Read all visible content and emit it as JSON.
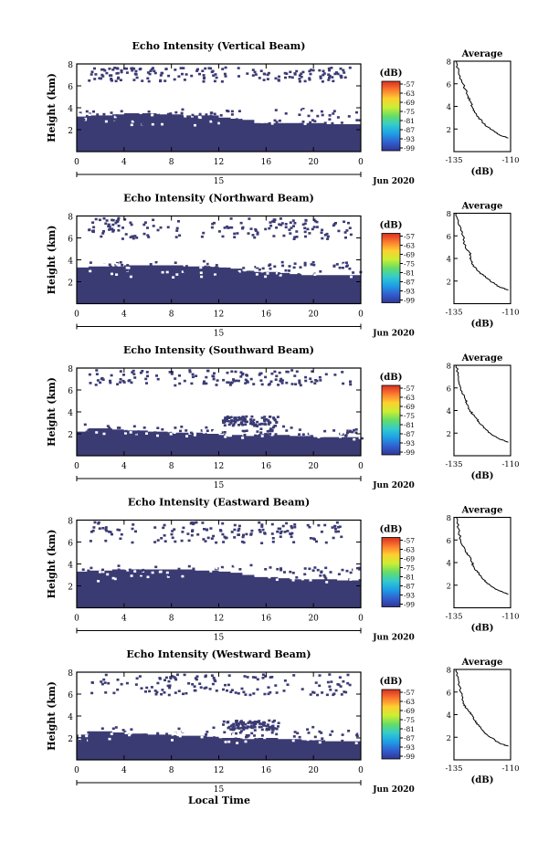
{
  "figure": {
    "xlabel": "Local Time",
    "colors": {
      "echo": "#3b3b74",
      "axis": "#000000",
      "background": "#ffffff"
    }
  },
  "colorbar": {
    "unit": "(dB)",
    "tick_labels": [
      "-57",
      "-63",
      "-69",
      "-75",
      "-81",
      "-87",
      "-93",
      "-99"
    ],
    "stops": [
      "#313695",
      "#3160d0",
      "#1ea0e6",
      "#33cccc",
      "#66dd66",
      "#ccee33",
      "#fdd030",
      "#fd7a30",
      "#d7301f"
    ]
  },
  "chart_data": [
    {
      "type": "heatmap",
      "title": "Echo Intensity (Vertical Beam)",
      "ylabel": "Height (km)",
      "xlim": [
        0,
        24
      ],
      "ylim": [
        0,
        8
      ],
      "x_ticks": [
        "0",
        "4",
        "8",
        "12",
        "16",
        "20",
        "0"
      ],
      "y_ticks": [
        "2",
        "4",
        "6",
        "8"
      ],
      "date_label": "15",
      "month_label": "Jun 2020",
      "solid_layer_top_km": [
        3.2,
        3.3,
        3.3,
        3.4,
        3.5,
        3.5,
        3.5,
        3.4,
        3.4,
        3.3,
        3.3,
        3.3,
        3.1,
        3.0,
        2.9,
        2.6,
        2.6,
        2.6,
        2.6,
        2.6,
        2.6,
        2.5,
        2.5,
        2.5,
        2.5
      ],
      "upper_echo_km": [
        6.5,
        7.8
      ],
      "profile": {
        "title": "Average",
        "xlabel": "(dB)",
        "xlim": [
          -135,
          -110
        ],
        "x_ticks": [
          "-135",
          "-110"
        ],
        "y_ticks": [
          "2",
          "4",
          "6",
          "8"
        ],
        "height_km": [
          8,
          7,
          6,
          5,
          4.5,
          4,
          3.5,
          3,
          2.5,
          2,
          1.5,
          1.2
        ],
        "value_db": [
          -134,
          -133,
          -131,
          -129,
          -128,
          -127,
          -126,
          -124,
          -122,
          -119,
          -115,
          -111
        ]
      }
    },
    {
      "type": "heatmap",
      "title": "Echo Intensity (Northward Beam)",
      "ylabel": "Height (km)",
      "xlim": [
        0,
        24
      ],
      "ylim": [
        0,
        8
      ],
      "x_ticks": [
        "0",
        "4",
        "8",
        "12",
        "16",
        "20",
        "0"
      ],
      "y_ticks": [
        "2",
        "4",
        "6",
        "8"
      ],
      "date_label": "15",
      "month_label": "Jun 2020",
      "solid_layer_top_km": [
        3.3,
        3.4,
        3.4,
        3.4,
        3.5,
        3.5,
        3.5,
        3.5,
        3.5,
        3.4,
        3.4,
        3.4,
        3.3,
        3.2,
        3.0,
        2.9,
        2.9,
        2.8,
        2.7,
        2.6,
        2.6,
        2.6,
        2.6,
        2.6,
        2.5
      ],
      "upper_echo_km": [
        6.0,
        8.0
      ],
      "profile": {
        "title": "Average",
        "xlabel": "(dB)",
        "xlim": [
          -135,
          -110
        ],
        "x_ticks": [
          "-135",
          "-110"
        ],
        "y_ticks": [
          "2",
          "4",
          "6",
          "8"
        ],
        "height_km": [
          8,
          7,
          6,
          5,
          4.5,
          4,
          3.5,
          3,
          2.5,
          2,
          1.5,
          1.2
        ],
        "value_db": [
          -134,
          -133,
          -131,
          -130,
          -128,
          -128,
          -127,
          -125,
          -122,
          -119,
          -115,
          -111
        ]
      }
    },
    {
      "type": "heatmap",
      "title": "Echo Intensity (Southward Beam)",
      "ylabel": "Height (km)",
      "xlim": [
        0,
        24
      ],
      "ylim": [
        0,
        8
      ],
      "x_ticks": [
        "0",
        "4",
        "8",
        "12",
        "16",
        "20",
        "0"
      ],
      "y_ticks": [
        "2",
        "4",
        "6",
        "8"
      ],
      "date_label": "15",
      "month_label": "Jun 2020",
      "solid_layer_top_km": [
        2.2,
        2.5,
        2.5,
        2.4,
        2.3,
        2.3,
        2.2,
        2.2,
        2.1,
        2.1,
        2.1,
        2.0,
        1.9,
        1.9,
        1.8,
        1.9,
        1.9,
        1.9,
        1.8,
        1.8,
        1.7,
        1.7,
        1.7,
        1.7,
        1.6
      ],
      "upper_echo_km": [
        6.5,
        8.0
      ],
      "profile": {
        "title": "Average",
        "xlabel": "(dB)",
        "xlim": [
          -135,
          -110
        ],
        "x_ticks": [
          "-135",
          "-110"
        ],
        "y_ticks": [
          "2",
          "4",
          "6",
          "8"
        ],
        "height_km": [
          8,
          7,
          6,
          5,
          4.5,
          4,
          3.5,
          3,
          2.5,
          2,
          1.5,
          1.2
        ],
        "value_db": [
          -134,
          -133,
          -132,
          -130,
          -129,
          -128,
          -126,
          -124,
          -122,
          -119,
          -115,
          -111
        ]
      }
    },
    {
      "type": "heatmap",
      "title": "Echo Intensity (Eastward Beam)",
      "ylabel": "Height (km)",
      "xlim": [
        0,
        24
      ],
      "ylim": [
        0,
        8
      ],
      "x_ticks": [
        "0",
        "4",
        "8",
        "12",
        "16",
        "20",
        "0"
      ],
      "y_ticks": [
        "2",
        "4",
        "6",
        "8"
      ],
      "date_label": "15",
      "month_label": "Jun 2020",
      "solid_layer_top_km": [
        3.3,
        3.4,
        3.4,
        3.5,
        3.5,
        3.5,
        3.5,
        3.5,
        3.5,
        3.5,
        3.4,
        3.4,
        3.3,
        3.2,
        3.0,
        2.8,
        2.8,
        2.7,
        2.6,
        2.6,
        2.6,
        2.6,
        2.5,
        2.5,
        2.5
      ],
      "upper_echo_km": [
        6.0,
        8.0
      ],
      "profile": {
        "title": "Average",
        "xlabel": "(dB)",
        "xlim": [
          -135,
          -110
        ],
        "x_ticks": [
          "-135",
          "-110"
        ],
        "y_ticks": [
          "2",
          "4",
          "6",
          "8"
        ],
        "height_km": [
          8,
          7,
          6,
          5,
          4.5,
          4,
          3.5,
          3,
          2.5,
          2,
          1.5,
          1.2
        ],
        "value_db": [
          -134,
          -133,
          -132,
          -130,
          -128,
          -127,
          -126,
          -124,
          -122,
          -119,
          -115,
          -111
        ]
      }
    },
    {
      "type": "heatmap",
      "title": "Echo Intensity (Westward Beam)",
      "ylabel": "Height (km)",
      "xlim": [
        0,
        24
      ],
      "ylim": [
        0,
        8
      ],
      "x_ticks": [
        "0",
        "4",
        "8",
        "12",
        "16",
        "20",
        "0"
      ],
      "y_ticks": [
        "2",
        "4",
        "6",
        "8"
      ],
      "date_label": "15",
      "month_label": "Jun 2020",
      "solid_layer_top_km": [
        2.3,
        2.6,
        2.6,
        2.5,
        2.4,
        2.4,
        2.3,
        2.3,
        2.2,
        2.2,
        2.2,
        2.1,
        2.0,
        2.0,
        1.9,
        2.0,
        2.0,
        1.9,
        1.9,
        1.8,
        1.8,
        1.7,
        1.7,
        1.7,
        1.7
      ],
      "upper_echo_km": [
        6.0,
        8.0
      ],
      "profile": {
        "title": "Average",
        "xlabel": "(dB)",
        "xlim": [
          -135,
          -110
        ],
        "x_ticks": [
          "-135",
          "-110"
        ],
        "y_ticks": [
          "2",
          "4",
          "6",
          "8"
        ],
        "height_km": [
          8,
          7,
          6,
          5,
          4.5,
          4,
          3.5,
          3,
          2.5,
          2,
          1.5,
          1.2
        ],
        "value_db": [
          -134,
          -133,
          -132,
          -131,
          -129,
          -127,
          -126,
          -124,
          -122,
          -119,
          -115,
          -111
        ]
      }
    }
  ]
}
